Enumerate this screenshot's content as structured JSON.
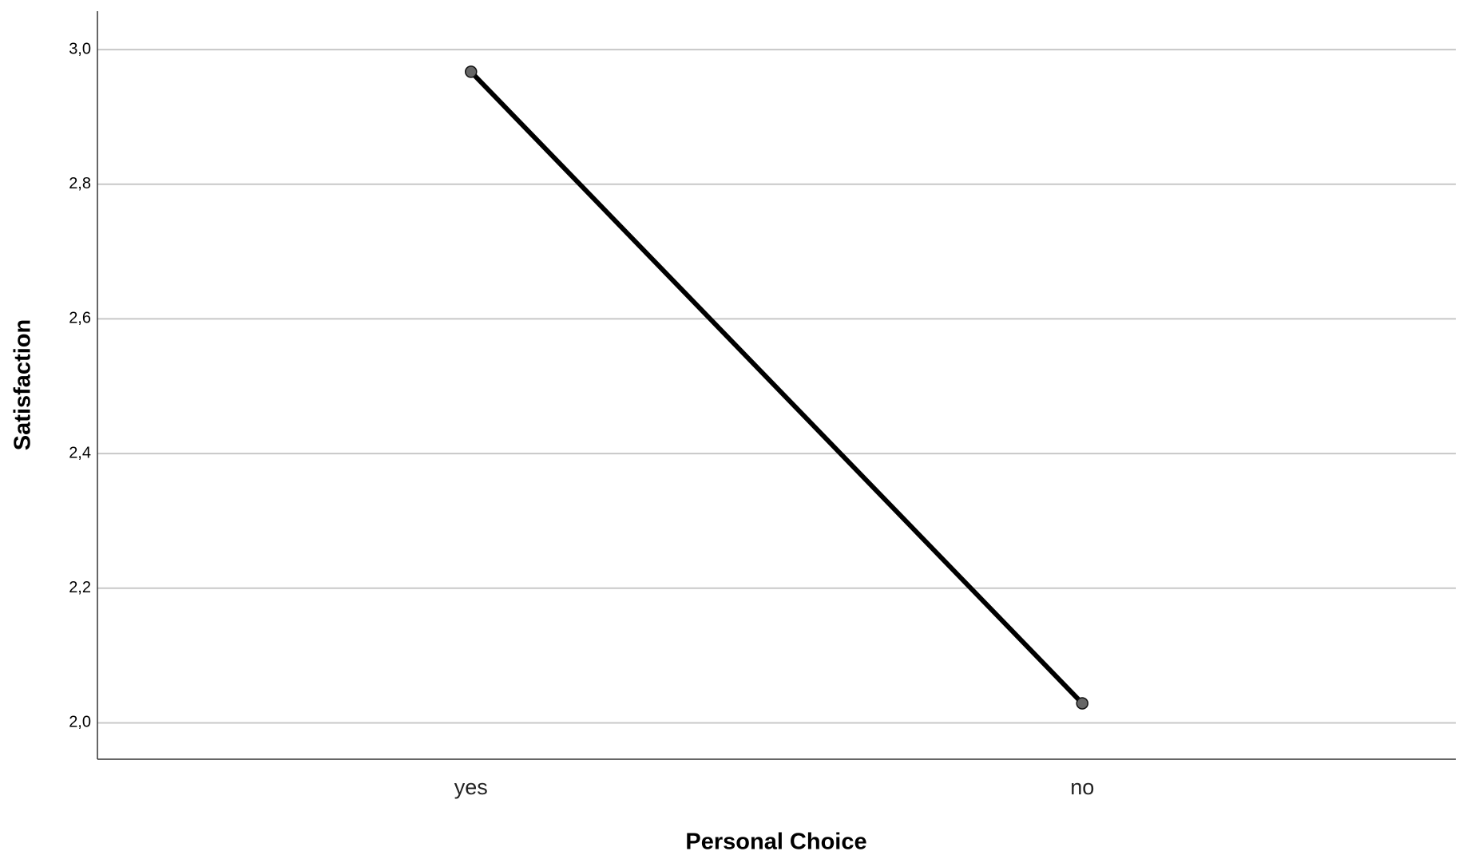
{
  "chart_data": {
    "type": "line",
    "x_label": "Personal Choice",
    "y_label": "Satisfaction",
    "categories": [
      "yes",
      "no"
    ],
    "series": [
      {
        "color": "#000000",
        "values": [
          2.967,
          2.029
        ]
      }
    ],
    "ylim": [
      1.946,
      3.057
    ],
    "yticks": [
      {
        "value": 2.0,
        "label": "2,0"
      },
      {
        "value": 2.2,
        "label": "2,2"
      },
      {
        "value": 2.4,
        "label": "2,4"
      },
      {
        "value": 2.6,
        "label": "2,6"
      },
      {
        "value": 2.8,
        "label": "2,8"
      },
      {
        "value": 3.0,
        "label": "3,0"
      }
    ],
    "grid": true
  }
}
